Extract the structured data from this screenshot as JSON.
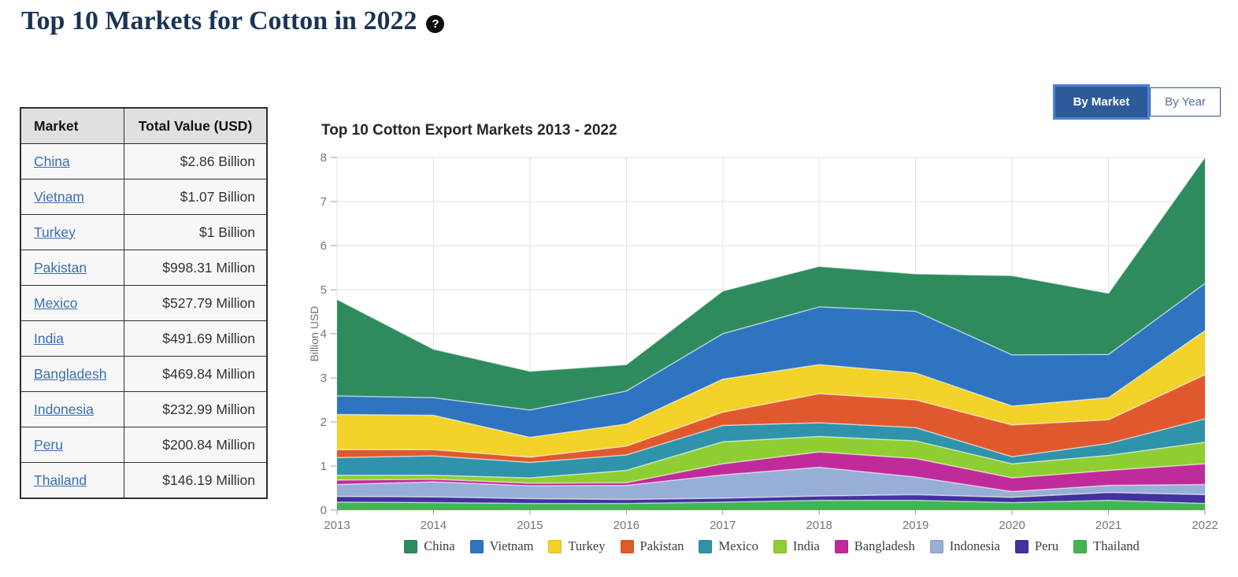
{
  "page": {
    "title": "Top 10 Markets for Cotton in 2022",
    "help_icon": "?"
  },
  "table": {
    "headers": [
      "Market",
      "Total Value (USD)"
    ],
    "rows": [
      {
        "market": "China",
        "value": "$2.86 Billion"
      },
      {
        "market": "Vietnam",
        "value": "$1.07 Billion"
      },
      {
        "market": "Turkey",
        "value": "$1 Billion"
      },
      {
        "market": "Pakistan",
        "value": "$998.31 Million"
      },
      {
        "market": "Mexico",
        "value": "$527.79 Million"
      },
      {
        "market": "India",
        "value": "$491.69 Million"
      },
      {
        "market": "Bangladesh",
        "value": "$469.84 Million"
      },
      {
        "market": "Indonesia",
        "value": "$232.99 Million"
      },
      {
        "market": "Peru",
        "value": "$200.84 Million"
      },
      {
        "market": "Thailand",
        "value": "$146.19 Million"
      }
    ]
  },
  "toggle": {
    "buttons": [
      {
        "label": "By Market",
        "active": true
      },
      {
        "label": "By Year",
        "active": false
      }
    ]
  },
  "colors": {
    "active_button_bg": "#2d5b9a",
    "active_button_ring": "#4d83d8",
    "link": "#3a6eb5",
    "title_text": "#1b3357"
  },
  "chart_data": {
    "type": "area",
    "stacked": true,
    "title": "Top 10 Cotton Export Markets 2013 - 2022",
    "xlabel": "",
    "ylabel": "Billion USD",
    "ylim": [
      0,
      8
    ],
    "yticks": [
      0,
      1,
      2,
      3,
      4,
      5,
      6,
      7,
      8
    ],
    "grid": true,
    "legend_position": "bottom",
    "categories": [
      2013,
      2014,
      2015,
      2016,
      2017,
      2018,
      2019,
      2020,
      2021,
      2022
    ],
    "series": [
      {
        "name": "China",
        "color": "#2e8b5e",
        "values": [
          2.19,
          1.1,
          0.88,
          0.6,
          0.97,
          0.92,
          0.85,
          1.8,
          1.39,
          2.86
        ]
      },
      {
        "name": "Vietnam",
        "color": "#2e74c0",
        "values": [
          0.42,
          0.4,
          0.62,
          0.75,
          1.03,
          1.31,
          1.4,
          1.16,
          0.98,
          1.07
        ]
      },
      {
        "name": "Turkey",
        "color": "#f3d229",
        "values": [
          0.8,
          0.78,
          0.45,
          0.5,
          0.75,
          0.66,
          0.61,
          0.43,
          0.5,
          1.0
        ]
      },
      {
        "name": "Pakistan",
        "color": "#e0592e",
        "values": [
          0.18,
          0.14,
          0.12,
          0.2,
          0.3,
          0.66,
          0.63,
          0.72,
          0.54,
          1.0
        ]
      },
      {
        "name": "Mexico",
        "color": "#2e93ab",
        "values": [
          0.4,
          0.44,
          0.35,
          0.35,
          0.37,
          0.31,
          0.3,
          0.16,
          0.27,
          0.53
        ]
      },
      {
        "name": "India",
        "color": "#8fce33",
        "values": [
          0.11,
          0.09,
          0.12,
          0.28,
          0.5,
          0.35,
          0.4,
          0.32,
          0.34,
          0.49
        ]
      },
      {
        "name": "Bangladesh",
        "color": "#c02b9b",
        "values": [
          0.1,
          0.06,
          0.06,
          0.06,
          0.25,
          0.35,
          0.42,
          0.31,
          0.34,
          0.47
        ]
      },
      {
        "name": "Indonesia",
        "color": "#97aed6",
        "values": [
          0.27,
          0.34,
          0.29,
          0.32,
          0.53,
          0.65,
          0.4,
          0.13,
          0.16,
          0.23
        ]
      },
      {
        "name": "Peru",
        "color": "#41329e",
        "values": [
          0.13,
          0.13,
          0.11,
          0.09,
          0.09,
          0.1,
          0.13,
          0.12,
          0.18,
          0.2
        ]
      },
      {
        "name": "Thailand",
        "color": "#45b351",
        "values": [
          0.18,
          0.17,
          0.15,
          0.15,
          0.18,
          0.22,
          0.22,
          0.17,
          0.22,
          0.15
        ]
      }
    ],
    "stack_order_bottom_to_top": [
      "Thailand",
      "Peru",
      "Indonesia",
      "Bangladesh",
      "India",
      "Mexico",
      "Pakistan",
      "Turkey",
      "Vietnam",
      "China"
    ]
  }
}
